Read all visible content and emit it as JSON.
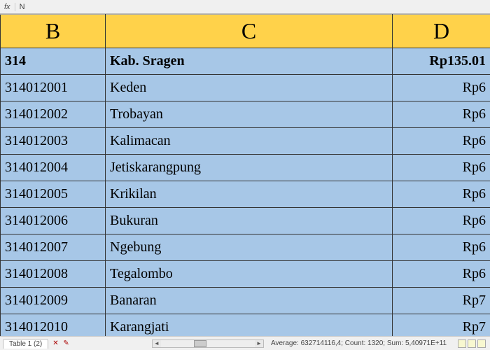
{
  "formula_bar": {
    "fx": "fx",
    "value": "N"
  },
  "columns": [
    {
      "letter": "B",
      "class": "col-b"
    },
    {
      "letter": "C",
      "class": "col-c"
    },
    {
      "letter": "D",
      "class": "col-d"
    }
  ],
  "header_row": {
    "b": "314",
    "c": "Kab.  Sragen",
    "d": "Rp135.01"
  },
  "rows": [
    {
      "b": "314012001",
      "c": "Keden",
      "d": "Rp6"
    },
    {
      "b": "314012002",
      "c": "Trobayan",
      "d": "Rp6"
    },
    {
      "b": "314012003",
      "c": "Kalimacan",
      "d": "Rp6"
    },
    {
      "b": "314012004",
      "c": "Jetiskarangpung",
      "d": "Rp6"
    },
    {
      "b": "314012005",
      "c": "Krikilan",
      "d": "Rp6"
    },
    {
      "b": "314012006",
      "c": "Bukuran",
      "d": "Rp6"
    },
    {
      "b": "314012007",
      "c": "Ngebung",
      "d": "Rp6"
    },
    {
      "b": "314012008",
      "c": "Tegalombo",
      "d": "Rp6"
    },
    {
      "b": "314012009",
      "c": "Banaran",
      "d": "Rp7"
    },
    {
      "b": "314012010",
      "c": "Karangjati",
      "d": "Rp7"
    }
  ],
  "status": {
    "tab": "Table 1 (2)",
    "stats": "Average: 632714116,4; Count: 1320; Sum: 5,40971E+11"
  }
}
